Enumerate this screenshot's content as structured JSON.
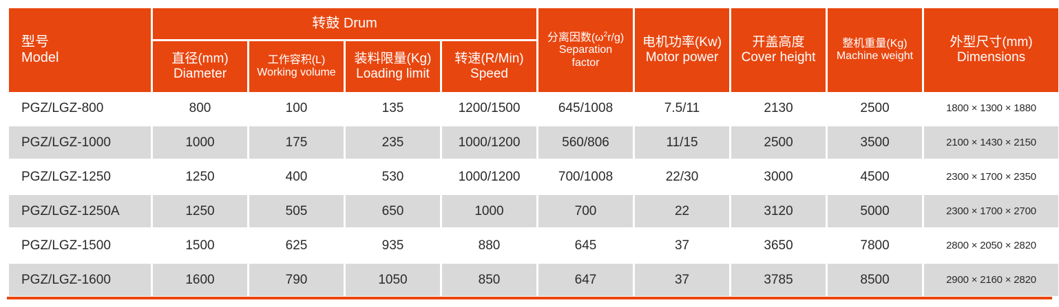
{
  "colors": {
    "header_bg": "#e8460f",
    "row_alt_bg": "#d9d9d9",
    "text": "#2a2a2a"
  },
  "header": {
    "model_cn": "型号",
    "model_en": "Model",
    "drum_group": "转鼓 Drum",
    "diameter_cn": "直径(mm)",
    "diameter_en": "Diameter",
    "volume_cn": "工作容积(L)",
    "volume_en": "Working volume",
    "loading_cn": "装料限量(Kg)",
    "loading_en": "Loading limit",
    "speed_cn": "转速(R/Min)",
    "speed_en": "Speed",
    "separation_cn_prefix": "分离因数(ω",
    "separation_cn_sup": "2",
    "separation_cn_suffix": "r/g)",
    "separation_en_1": "Separation",
    "separation_en_2": "factor",
    "motor_cn": "电机功率(Kw)",
    "motor_en": "Motor power",
    "cover_cn": "开盖高度",
    "cover_en": "Cover height",
    "weight_cn": "整机重量(Kg)",
    "weight_en": "Machine weight",
    "dimensions_cn": "外型尺寸(mm)",
    "dimensions_en": "Dimensions"
  },
  "rows": [
    {
      "model": "PGZ/LGZ-800",
      "diameter": "800",
      "volume": "100",
      "loading": "135",
      "speed": "1200/1500",
      "separation": "645/1008",
      "motor": "7.5/11",
      "cover": "2130",
      "weight": "2500",
      "dimensions": "1800 × 1300 × 1880"
    },
    {
      "model": "PGZ/LGZ-1000",
      "diameter": "1000",
      "volume": "175",
      "loading": "235",
      "speed": "1000/1200",
      "separation": "560/806",
      "motor": "11/15",
      "cover": "2500",
      "weight": "3500",
      "dimensions": "2100 × 1430 × 2150"
    },
    {
      "model": "PGZ/LGZ-1250",
      "diameter": "1250",
      "volume": "400",
      "loading": "530",
      "speed": "1000/1200",
      "separation": "700/1008",
      "motor": "22/30",
      "cover": "3000",
      "weight": "4500",
      "dimensions": "2300 × 1700 × 2350"
    },
    {
      "model": "PGZ/LGZ-1250A",
      "diameter": "1250",
      "volume": "505",
      "loading": "650",
      "speed": "1000",
      "separation": "700",
      "motor": "22",
      "cover": "3120",
      "weight": "5000",
      "dimensions": "2300 × 1700 × 2700"
    },
    {
      "model": "PGZ/LGZ-1500",
      "diameter": "1500",
      "volume": "625",
      "loading": "935",
      "speed": "880",
      "separation": "645",
      "motor": "37",
      "cover": "3650",
      "weight": "7800",
      "dimensions": "2800 × 2050 × 2820"
    },
    {
      "model": "PGZ/LGZ-1600",
      "diameter": "1600",
      "volume": "790",
      "loading": "1050",
      "speed": "850",
      "separation": "647",
      "motor": "37",
      "cover": "3785",
      "weight": "8500",
      "dimensions": "2900 × 2160 × 2820"
    }
  ]
}
